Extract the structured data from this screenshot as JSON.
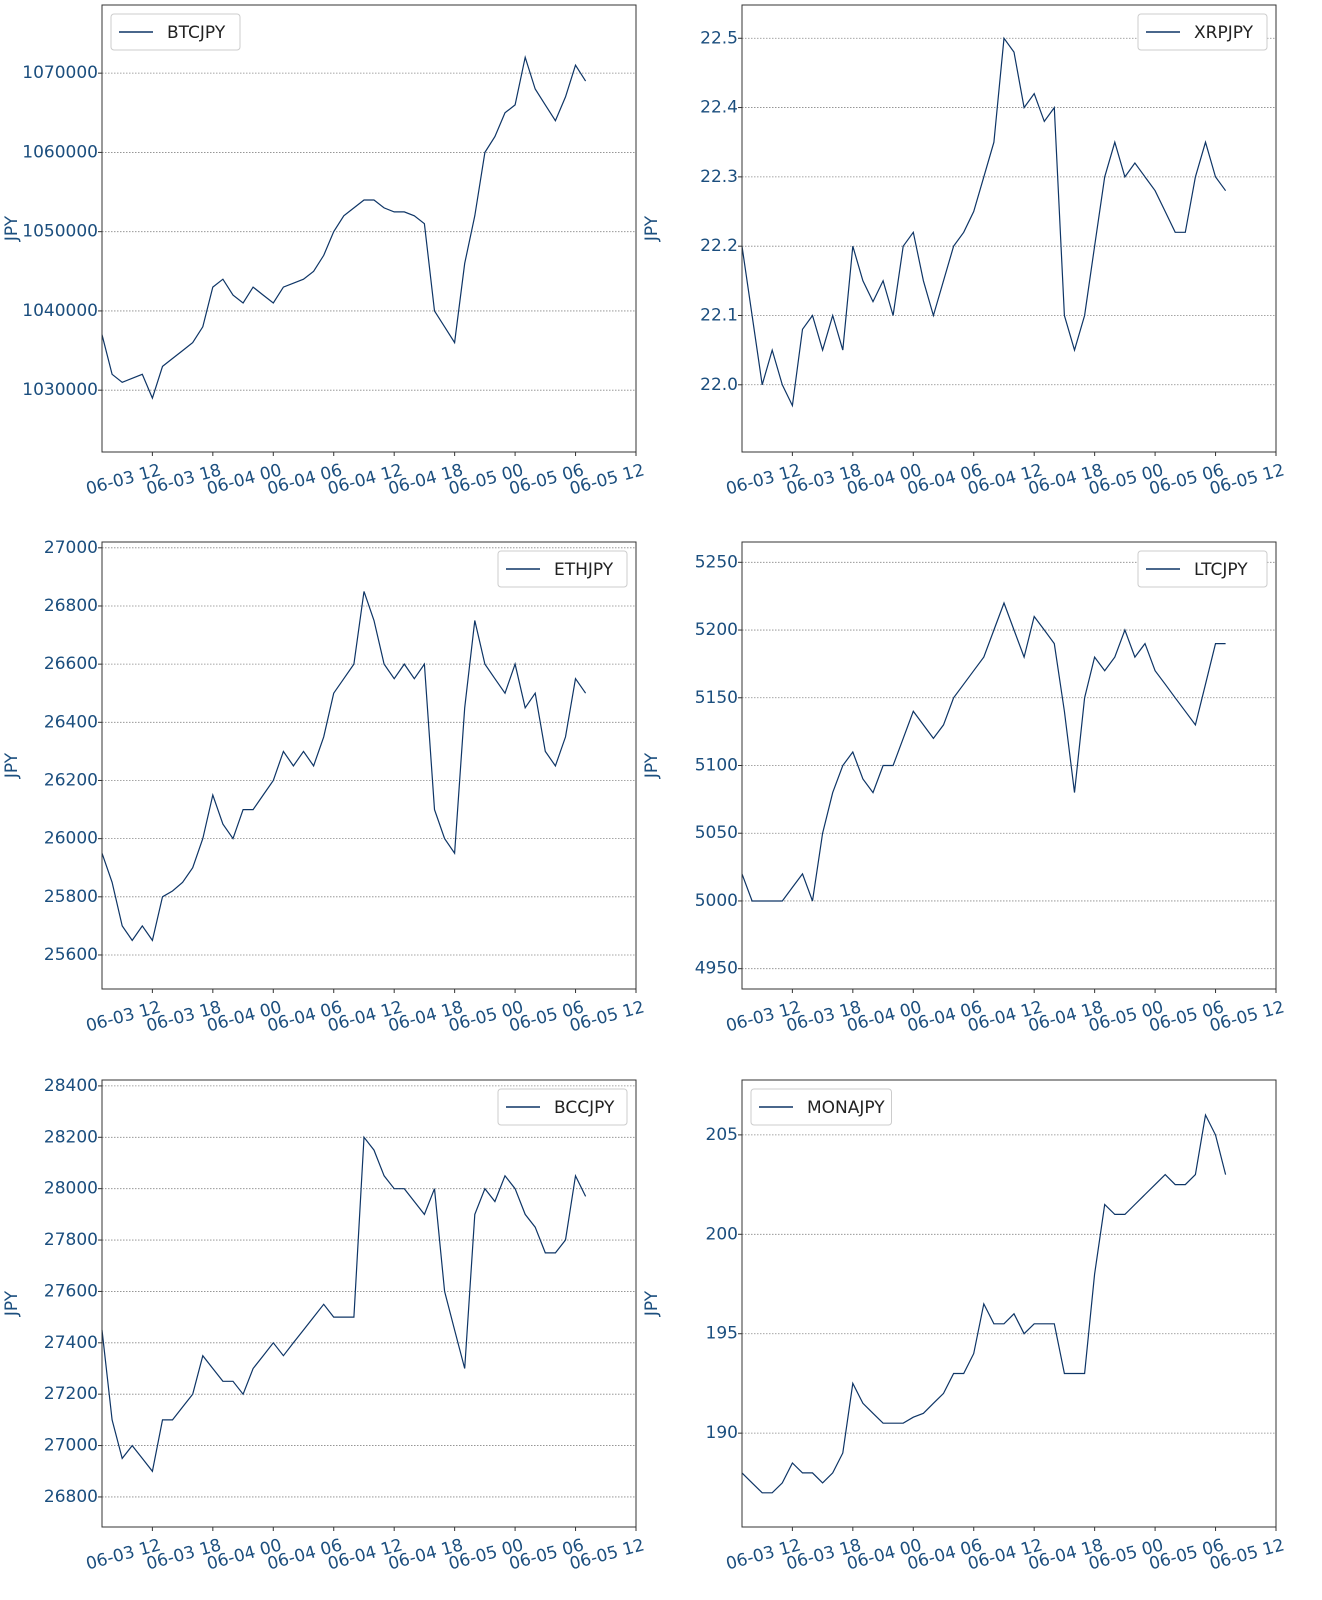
{
  "chart_data": [
    {
      "type": "line",
      "ylabel": "JPY",
      "legend": "upper left",
      "grid": true,
      "x": [
        "06-03 07",
        "06-03 08",
        "06-03 09",
        "06-03 10",
        "06-03 11",
        "06-03 12",
        "06-03 13",
        "06-03 14",
        "06-03 15",
        "06-03 16",
        "06-03 17",
        "06-03 18",
        "06-03 19",
        "06-03 20",
        "06-03 21",
        "06-03 22",
        "06-03 23",
        "06-04 00",
        "06-04 01",
        "06-04 02",
        "06-04 03",
        "06-04 04",
        "06-04 05",
        "06-04 06",
        "06-04 07",
        "06-04 08",
        "06-04 09",
        "06-04 10",
        "06-04 11",
        "06-04 12",
        "06-04 13",
        "06-04 14",
        "06-04 15",
        "06-04 16",
        "06-04 17",
        "06-04 18",
        "06-04 19",
        "06-04 20",
        "06-04 21",
        "06-04 22",
        "06-04 23",
        "06-05 00",
        "06-05 01",
        "06-05 02",
        "06-05 03",
        "06-05 04",
        "06-05 05",
        "06-05 06",
        "06-05 07"
      ],
      "xlim": [
        "06-03 07",
        "06-05 12"
      ],
      "xticks": [
        "06-03 12",
        "06-03 18",
        "06-04 00",
        "06-04 06",
        "06-04 12",
        "06-04 18",
        "06-05 00",
        "06-05 06",
        "06-05 12"
      ],
      "ylim": [
        1022200,
        1078600
      ],
      "yticks": [
        1030000,
        1040000,
        1050000,
        1060000,
        1070000
      ],
      "series": [
        {
          "name": "BTCJPY",
          "color": "#0e3566",
          "values": [
            1037000,
            1032000,
            1031000,
            1031500,
            1032000,
            1029000,
            1033000,
            1034000,
            1035000,
            1036000,
            1038000,
            1043000,
            1044000,
            1042000,
            1041000,
            1043000,
            1042000,
            1041000,
            1043000,
            1043500,
            1044000,
            1045000,
            1047000,
            1050000,
            1052000,
            1053000,
            1054000,
            1054000,
            1053000,
            1052500,
            1052500,
            1052000,
            1051000,
            1040000,
            1038000,
            1036000,
            1046000,
            1052000,
            1060000,
            1062000,
            1065000,
            1066000,
            1072000,
            1068000,
            1066000,
            1064000,
            1067000,
            1071000,
            1069000
          ]
        }
      ]
    },
    {
      "type": "line",
      "ylabel": "JPY",
      "legend": "upper right",
      "grid": true,
      "x": [
        "06-03 07",
        "06-03 08",
        "06-03 09",
        "06-03 10",
        "06-03 11",
        "06-03 12",
        "06-03 13",
        "06-03 14",
        "06-03 15",
        "06-03 16",
        "06-03 17",
        "06-03 18",
        "06-03 19",
        "06-03 20",
        "06-03 21",
        "06-03 22",
        "06-03 23",
        "06-04 00",
        "06-04 01",
        "06-04 02",
        "06-04 03",
        "06-04 04",
        "06-04 05",
        "06-04 06",
        "06-04 07",
        "06-04 08",
        "06-04 09",
        "06-04 10",
        "06-04 11",
        "06-04 12",
        "06-04 13",
        "06-04 14",
        "06-04 15",
        "06-04 16",
        "06-04 17",
        "06-04 18",
        "06-04 19",
        "06-04 20",
        "06-04 21",
        "06-04 22",
        "06-04 23",
        "06-05 00",
        "06-05 01",
        "06-05 02",
        "06-05 03",
        "06-05 04",
        "06-05 05",
        "06-05 06",
        "06-05 07"
      ],
      "xlim": [
        "06-03 07",
        "06-05 12"
      ],
      "xticks": [
        "06-03 12",
        "06-03 18",
        "06-04 00",
        "06-04 06",
        "06-04 12",
        "06-04 18",
        "06-05 00",
        "06-05 06",
        "06-05 12"
      ],
      "ylim": [
        21.903,
        22.548
      ],
      "yticks": [
        {
          "value": 22,
          "label": "22.0"
        },
        22.1,
        22.2,
        22.3,
        22.4,
        22.5
      ],
      "series": [
        {
          "name": "XRPJPY",
          "color": "#0e3566",
          "values": [
            22.2,
            22.1,
            22.0,
            22.05,
            22.0,
            21.97,
            22.08,
            22.1,
            22.05,
            22.1,
            22.05,
            22.2,
            22.15,
            22.12,
            22.15,
            22.1,
            22.2,
            22.22,
            22.15,
            22.1,
            22.15,
            22.2,
            22.22,
            22.25,
            22.3,
            22.35,
            22.5,
            22.48,
            22.4,
            22.42,
            22.38,
            22.4,
            22.1,
            22.05,
            22.1,
            22.2,
            22.3,
            22.35,
            22.3,
            22.32,
            22.3,
            22.28,
            22.25,
            22.22,
            22.22,
            22.3,
            22.35,
            22.3,
            22.28
          ]
        }
      ]
    },
    {
      "type": "line",
      "ylabel": "JPY",
      "legend": "upper right",
      "grid": true,
      "x": [
        "06-03 07",
        "06-03 08",
        "06-03 09",
        "06-03 10",
        "06-03 11",
        "06-03 12",
        "06-03 13",
        "06-03 14",
        "06-03 15",
        "06-03 16",
        "06-03 17",
        "06-03 18",
        "06-03 19",
        "06-03 20",
        "06-03 21",
        "06-03 22",
        "06-03 23",
        "06-04 00",
        "06-04 01",
        "06-04 02",
        "06-04 03",
        "06-04 04",
        "06-04 05",
        "06-04 06",
        "06-04 07",
        "06-04 08",
        "06-04 09",
        "06-04 10",
        "06-04 11",
        "06-04 12",
        "06-04 13",
        "06-04 14",
        "06-04 15",
        "06-04 16",
        "06-04 17",
        "06-04 18",
        "06-04 19",
        "06-04 20",
        "06-04 21",
        "06-04 22",
        "06-04 23",
        "06-05 00",
        "06-05 01",
        "06-05 02",
        "06-05 03",
        "06-05 04",
        "06-05 05",
        "06-05 06",
        "06-05 07"
      ],
      "xlim": [
        "06-03 07",
        "06-05 12"
      ],
      "xticks": [
        "06-03 12",
        "06-03 18",
        "06-04 00",
        "06-04 06",
        "06-04 12",
        "06-04 18",
        "06-05 00",
        "06-05 06",
        "06-05 12"
      ],
      "ylim": [
        25483,
        27020
      ],
      "yticks": [
        25600,
        25800,
        26000,
        26200,
        26400,
        26600,
        26800,
        27000
      ],
      "series": [
        {
          "name": "ETHJPY",
          "color": "#0e3566",
          "values": [
            25950,
            25850,
            25700,
            25650,
            25700,
            25650,
            25800,
            25820,
            25850,
            25900,
            26000,
            26150,
            26050,
            26000,
            26100,
            26100,
            26150,
            26200,
            26300,
            26250,
            26300,
            26250,
            26350,
            26500,
            26550,
            26600,
            26850,
            26750,
            26600,
            26550,
            26600,
            26550,
            26600,
            26100,
            26000,
            25950,
            26450,
            26750,
            26600,
            26550,
            26500,
            26600,
            26450,
            26500,
            26300,
            26250,
            26350,
            26550,
            26500
          ]
        }
      ]
    },
    {
      "type": "line",
      "ylabel": "JPY",
      "legend": "upper right",
      "grid": true,
      "x": [
        "06-03 07",
        "06-03 08",
        "06-03 09",
        "06-03 10",
        "06-03 11",
        "06-03 12",
        "06-03 13",
        "06-03 14",
        "06-03 15",
        "06-03 16",
        "06-03 17",
        "06-03 18",
        "06-03 19",
        "06-03 20",
        "06-03 21",
        "06-03 22",
        "06-03 23",
        "06-04 00",
        "06-04 01",
        "06-04 02",
        "06-04 03",
        "06-04 04",
        "06-04 05",
        "06-04 06",
        "06-04 07",
        "06-04 08",
        "06-04 09",
        "06-04 10",
        "06-04 11",
        "06-04 12",
        "06-04 13",
        "06-04 14",
        "06-04 15",
        "06-04 16",
        "06-04 17",
        "06-04 18",
        "06-04 19",
        "06-04 20",
        "06-04 21",
        "06-04 22",
        "06-04 23",
        "06-05 00",
        "06-05 01",
        "06-05 02",
        "06-05 03",
        "06-05 04",
        "06-05 05",
        "06-05 06",
        "06-05 07"
      ],
      "xlim": [
        "06-03 07",
        "06-05 12"
      ],
      "xticks": [
        "06-03 12",
        "06-03 18",
        "06-04 00",
        "06-04 06",
        "06-04 12",
        "06-04 18",
        "06-05 00",
        "06-05 06",
        "06-05 12"
      ],
      "ylim": [
        4935,
        5265
      ],
      "yticks": [
        4950,
        5000,
        5050,
        5100,
        5150,
        5200,
        5250
      ],
      "series": [
        {
          "name": "LTCJPY",
          "color": "#0e3566",
          "values": [
            5020,
            5000,
            5000,
            5000,
            5000,
            5010,
            5020,
            5000,
            5050,
            5080,
            5100,
            5110,
            5090,
            5080,
            5100,
            5100,
            5120,
            5140,
            5130,
            5120,
            5130,
            5150,
            5160,
            5170,
            5180,
            5200,
            5220,
            5200,
            5180,
            5210,
            5200,
            5190,
            5140,
            5080,
            5150,
            5180,
            5170,
            5180,
            5200,
            5180,
            5190,
            5170,
            5160,
            5150,
            5140,
            5130,
            5160,
            5190,
            5190
          ]
        }
      ]
    },
    {
      "type": "line",
      "ylabel": "JPY",
      "legend": "upper right",
      "grid": true,
      "x": [
        "06-03 07",
        "06-03 08",
        "06-03 09",
        "06-03 10",
        "06-03 11",
        "06-03 12",
        "06-03 13",
        "06-03 14",
        "06-03 15",
        "06-03 16",
        "06-03 17",
        "06-03 18",
        "06-03 19",
        "06-03 20",
        "06-03 21",
        "06-03 22",
        "06-03 23",
        "06-04 00",
        "06-04 01",
        "06-04 02",
        "06-04 03",
        "06-04 04",
        "06-04 05",
        "06-04 06",
        "06-04 07",
        "06-04 08",
        "06-04 09",
        "06-04 10",
        "06-04 11",
        "06-04 12",
        "06-04 13",
        "06-04 14",
        "06-04 15",
        "06-04 16",
        "06-04 17",
        "06-04 18",
        "06-04 19",
        "06-04 20",
        "06-04 21",
        "06-04 22",
        "06-04 23",
        "06-05 00",
        "06-05 01",
        "06-05 02",
        "06-05 03",
        "06-05 04",
        "06-05 05",
        "06-05 06",
        "06-05 07"
      ],
      "xlim": [
        "06-03 07",
        "06-05 12"
      ],
      "xticks": [
        "06-03 12",
        "06-03 18",
        "06-04 00",
        "06-04 06",
        "06-04 12",
        "06-04 18",
        "06-05 00",
        "06-05 06",
        "06-05 12"
      ],
      "ylim": [
        26683,
        28423
      ],
      "yticks": [
        26800,
        27000,
        27200,
        27400,
        27600,
        27800,
        28000,
        28200,
        28400
      ],
      "series": [
        {
          "name": "BCCJPY",
          "color": "#0e3566",
          "values": [
            27450,
            27100,
            26950,
            27000,
            26950,
            26900,
            27100,
            27100,
            27150,
            27200,
            27350,
            27300,
            27250,
            27250,
            27200,
            27300,
            27350,
            27400,
            27350,
            27400,
            27450,
            27500,
            27550,
            27500,
            27500,
            27500,
            28200,
            28150,
            28050,
            28000,
            28000,
            27950,
            27900,
            28000,
            27600,
            27450,
            27300,
            27900,
            28000,
            27950,
            28050,
            28000,
            27900,
            27850,
            27750,
            27750,
            27800,
            28050,
            27970
          ]
        }
      ]
    },
    {
      "type": "line",
      "ylabel": "JPY",
      "legend": "upper left",
      "grid": true,
      "x": [
        "06-03 07",
        "06-03 08",
        "06-03 09",
        "06-03 10",
        "06-03 11",
        "06-03 12",
        "06-03 13",
        "06-03 14",
        "06-03 15",
        "06-03 16",
        "06-03 17",
        "06-03 18",
        "06-03 19",
        "06-03 20",
        "06-03 21",
        "06-03 22",
        "06-03 23",
        "06-04 00",
        "06-04 01",
        "06-04 02",
        "06-04 03",
        "06-04 04",
        "06-04 05",
        "06-04 06",
        "06-04 07",
        "06-04 08",
        "06-04 09",
        "06-04 10",
        "06-04 11",
        "06-04 12",
        "06-04 13",
        "06-04 14",
        "06-04 15",
        "06-04 16",
        "06-04 17",
        "06-04 18",
        "06-04 19",
        "06-04 20",
        "06-04 21",
        "06-04 22",
        "06-04 23",
        "06-05 00",
        "06-05 01",
        "06-05 02",
        "06-05 03",
        "06-05 04",
        "06-05 05",
        "06-05 06",
        "06-05 07"
      ],
      "xlim": [
        "06-03 07",
        "06-05 12"
      ],
      "xticks": [
        "06-03 12",
        "06-03 18",
        "06-04 00",
        "06-04 06",
        "06-04 12",
        "06-04 18",
        "06-05 00",
        "06-05 06",
        "06-05 12"
      ],
      "ylim": [
        185.28,
        207.76
      ],
      "yticks": [
        190,
        195,
        200,
        205
      ],
      "series": [
        {
          "name": "MONAJPY",
          "color": "#0e3566",
          "values": [
            188,
            187.5,
            187,
            187,
            187.5,
            188.5,
            188,
            188,
            187.5,
            188,
            189,
            192.5,
            191.5,
            191,
            190.5,
            190.5,
            190.5,
            190.8,
            191,
            191.5,
            192,
            193,
            193,
            194,
            196.5,
            195.5,
            195.5,
            196,
            195,
            195.5,
            195.5,
            195.5,
            193,
            193,
            193,
            198,
            201.5,
            201,
            201,
            201.5,
            202,
            202.5,
            203,
            202.5,
            202.5,
            203,
            206,
            205,
            203
          ]
        }
      ]
    }
  ]
}
